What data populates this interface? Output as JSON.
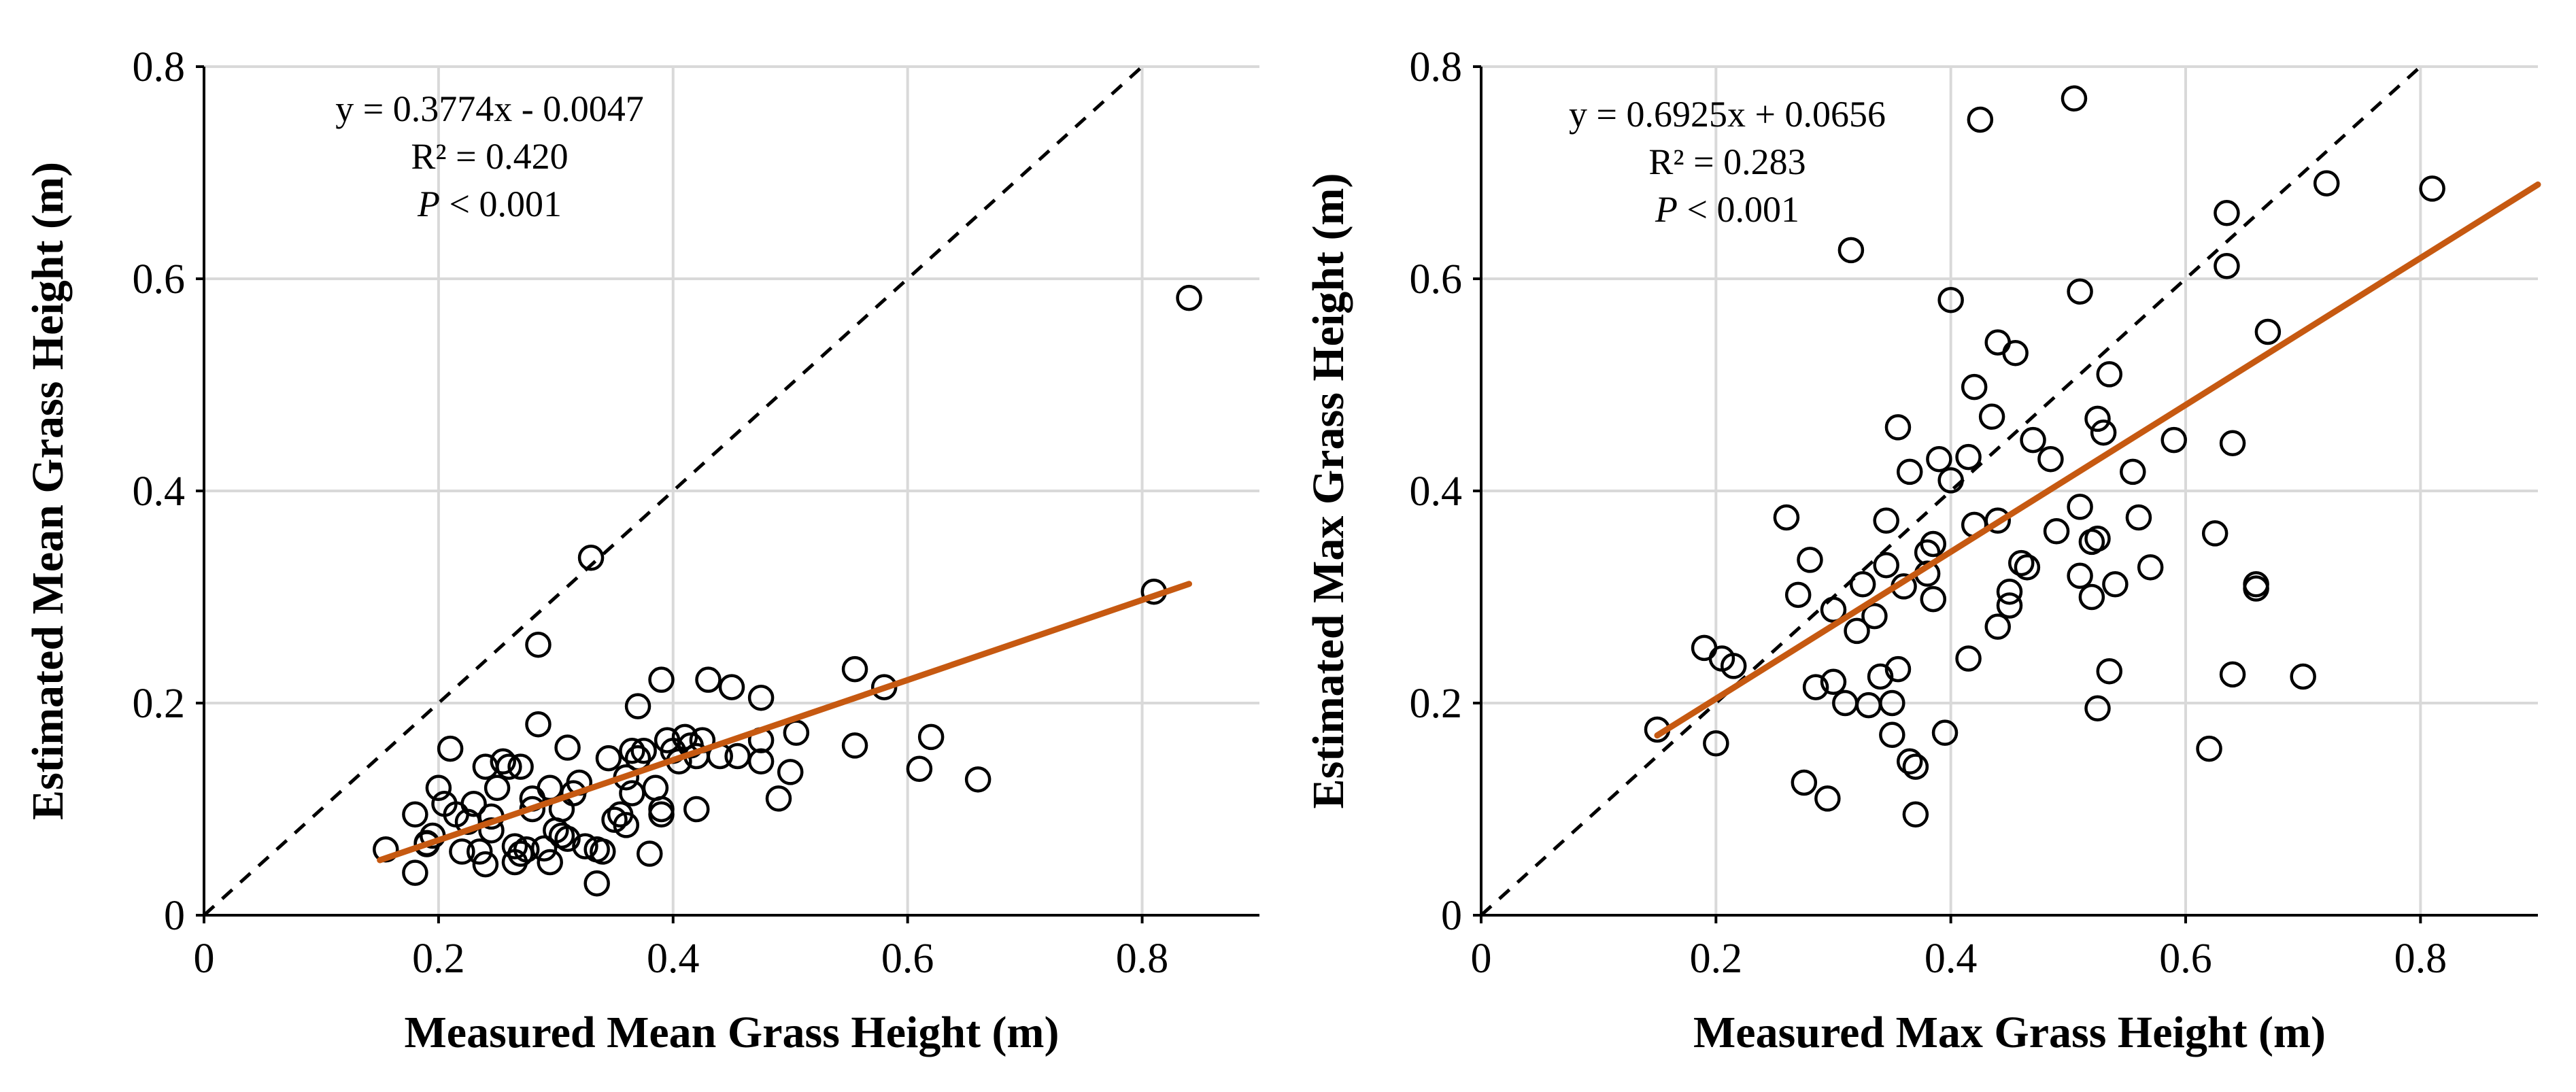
{
  "colors": {
    "fit_line": "#c65911",
    "points": "#000000",
    "reference_line": "#000000",
    "grid": "#d9d9d9"
  },
  "chart_data": [
    {
      "type": "scatter",
      "xlabel": "Measured Mean Grass Height (m)",
      "ylabel": "Estimated Mean Grass Height (m)",
      "xlim": [
        0,
        0.9
      ],
      "ylim": [
        0,
        0.8
      ],
      "xticks": [
        "0",
        "0.2",
        "0.4",
        "0.6",
        "0.8"
      ],
      "yticks": [
        "0",
        "0.2",
        "0.4",
        "0.6",
        "0.8"
      ],
      "annotation": {
        "equation": "y = 0.3774x - 0.0047",
        "r2": "R² = 0.420",
        "p_prefix": "P",
        "p_rest": " < 0.001"
      },
      "fit": {
        "slope": 0.3774,
        "intercept": -0.0047,
        "x_range": [
          0.15,
          0.84
        ]
      },
      "reference_line": "1:1",
      "points": [
        [
          0.155,
          0.062
        ],
        [
          0.18,
          0.095
        ],
        [
          0.18,
          0.04
        ],
        [
          0.19,
          0.067
        ],
        [
          0.19,
          0.068
        ],
        [
          0.195,
          0.075
        ],
        [
          0.2,
          0.12
        ],
        [
          0.205,
          0.105
        ],
        [
          0.21,
          0.157
        ],
        [
          0.215,
          0.095
        ],
        [
          0.22,
          0.06
        ],
        [
          0.225,
          0.088
        ],
        [
          0.23,
          0.105
        ],
        [
          0.235,
          0.06
        ],
        [
          0.24,
          0.048
        ],
        [
          0.24,
          0.14
        ],
        [
          0.245,
          0.08
        ],
        [
          0.245,
          0.093
        ],
        [
          0.25,
          0.12
        ],
        [
          0.255,
          0.145
        ],
        [
          0.26,
          0.14
        ],
        [
          0.265,
          0.05
        ],
        [
          0.265,
          0.065
        ],
        [
          0.27,
          0.14
        ],
        [
          0.27,
          0.058
        ],
        [
          0.275,
          0.062
        ],
        [
          0.28,
          0.1
        ],
        [
          0.28,
          0.11
        ],
        [
          0.285,
          0.18
        ],
        [
          0.285,
          0.255
        ],
        [
          0.29,
          0.063
        ],
        [
          0.295,
          0.05
        ],
        [
          0.295,
          0.12
        ],
        [
          0.3,
          0.08
        ],
        [
          0.305,
          0.075
        ],
        [
          0.305,
          0.1
        ],
        [
          0.31,
          0.158
        ],
        [
          0.31,
          0.072
        ],
        [
          0.315,
          0.115
        ],
        [
          0.32,
          0.125
        ],
        [
          0.325,
          0.065
        ],
        [
          0.33,
          0.337
        ],
        [
          0.335,
          0.062
        ],
        [
          0.335,
          0.03
        ],
        [
          0.34,
          0.06
        ],
        [
          0.345,
          0.148
        ],
        [
          0.35,
          0.09
        ],
        [
          0.355,
          0.095
        ],
        [
          0.36,
          0.13
        ],
        [
          0.36,
          0.085
        ],
        [
          0.365,
          0.155
        ],
        [
          0.365,
          0.115
        ],
        [
          0.37,
          0.148
        ],
        [
          0.37,
          0.197
        ],
        [
          0.375,
          0.155
        ],
        [
          0.38,
          0.058
        ],
        [
          0.385,
          0.12
        ],
        [
          0.39,
          0.095
        ],
        [
          0.39,
          0.222
        ],
        [
          0.39,
          0.1
        ],
        [
          0.395,
          0.165
        ],
        [
          0.4,
          0.155
        ],
        [
          0.405,
          0.145
        ],
        [
          0.41,
          0.168
        ],
        [
          0.415,
          0.16
        ],
        [
          0.42,
          0.1
        ],
        [
          0.42,
          0.15
        ],
        [
          0.425,
          0.165
        ],
        [
          0.43,
          0.222
        ],
        [
          0.44,
          0.15
        ],
        [
          0.45,
          0.215
        ],
        [
          0.455,
          0.15
        ],
        [
          0.475,
          0.205
        ],
        [
          0.475,
          0.165
        ],
        [
          0.475,
          0.145
        ],
        [
          0.49,
          0.11
        ],
        [
          0.5,
          0.135
        ],
        [
          0.505,
          0.172
        ],
        [
          0.555,
          0.232
        ],
        [
          0.555,
          0.16
        ],
        [
          0.58,
          0.215
        ],
        [
          0.61,
          0.138
        ],
        [
          0.62,
          0.168
        ],
        [
          0.66,
          0.128
        ],
        [
          0.81,
          0.305
        ],
        [
          0.84,
          0.582
        ]
      ]
    },
    {
      "type": "scatter",
      "xlabel": "Measured Max Grass Height (m)",
      "ylabel": "Estimated Max Grass Height (m)",
      "xlim": [
        0,
        0.9
      ],
      "ylim": [
        0,
        0.8
      ],
      "xticks": [
        "0",
        "0.2",
        "0.4",
        "0.6",
        "0.8"
      ],
      "yticks": [
        "0",
        "0.2",
        "0.4",
        "0.6",
        "0.8"
      ],
      "annotation": {
        "equation": "y = 0.6925x + 0.0656",
        "r2": "R² = 0.283",
        "p_prefix": "P",
        "p_rest": " < 0.001"
      },
      "fit": {
        "slope": 0.6925,
        "intercept": 0.0656,
        "x_range": [
          0.15,
          0.9
        ]
      },
      "reference_line": "1:1",
      "points": [
        [
          0.15,
          0.175
        ],
        [
          0.19,
          0.252
        ],
        [
          0.2,
          0.162
        ],
        [
          0.205,
          0.242
        ],
        [
          0.215,
          0.235
        ],
        [
          0.26,
          0.375
        ],
        [
          0.27,
          0.302
        ],
        [
          0.275,
          0.125
        ],
        [
          0.28,
          0.335
        ],
        [
          0.285,
          0.215
        ],
        [
          0.295,
          0.11
        ],
        [
          0.3,
          0.288
        ],
        [
          0.3,
          0.22
        ],
        [
          0.31,
          0.2
        ],
        [
          0.315,
          0.627
        ],
        [
          0.32,
          0.268
        ],
        [
          0.325,
          0.312
        ],
        [
          0.33,
          0.198
        ],
        [
          0.335,
          0.282
        ],
        [
          0.34,
          0.225
        ],
        [
          0.345,
          0.33
        ],
        [
          0.345,
          0.372
        ],
        [
          0.35,
          0.2
        ],
        [
          0.35,
          0.17
        ],
        [
          0.355,
          0.232
        ],
        [
          0.355,
          0.46
        ],
        [
          0.36,
          0.31
        ],
        [
          0.365,
          0.418
        ],
        [
          0.365,
          0.145
        ],
        [
          0.37,
          0.14
        ],
        [
          0.37,
          0.095
        ],
        [
          0.38,
          0.342
        ],
        [
          0.38,
          0.322
        ],
        [
          0.385,
          0.298
        ],
        [
          0.385,
          0.35
        ],
        [
          0.39,
          0.43
        ],
        [
          0.395,
          0.172
        ],
        [
          0.4,
          0.41
        ],
        [
          0.4,
          0.58
        ],
        [
          0.415,
          0.242
        ],
        [
          0.415,
          0.432
        ],
        [
          0.42,
          0.498
        ],
        [
          0.42,
          0.368
        ],
        [
          0.425,
          0.75
        ],
        [
          0.435,
          0.47
        ],
        [
          0.44,
          0.54
        ],
        [
          0.44,
          0.272
        ],
        [
          0.44,
          0.372
        ],
        [
          0.45,
          0.292
        ],
        [
          0.45,
          0.305
        ],
        [
          0.455,
          0.53
        ],
        [
          0.46,
          0.332
        ],
        [
          0.465,
          0.328
        ],
        [
          0.47,
          0.448
        ],
        [
          0.485,
          0.43
        ],
        [
          0.49,
          0.362
        ],
        [
          0.505,
          0.77
        ],
        [
          0.51,
          0.588
        ],
        [
          0.51,
          0.385
        ],
        [
          0.51,
          0.32
        ],
        [
          0.52,
          0.352
        ],
        [
          0.52,
          0.3
        ],
        [
          0.525,
          0.468
        ],
        [
          0.525,
          0.355
        ],
        [
          0.525,
          0.195
        ],
        [
          0.53,
          0.455
        ],
        [
          0.535,
          0.51
        ],
        [
          0.535,
          0.23
        ],
        [
          0.54,
          0.312
        ],
        [
          0.555,
          0.418
        ],
        [
          0.56,
          0.375
        ],
        [
          0.57,
          0.328
        ],
        [
          0.59,
          0.448
        ],
        [
          0.62,
          0.157
        ],
        [
          0.625,
          0.36
        ],
        [
          0.635,
          0.612
        ],
        [
          0.635,
          0.662
        ],
        [
          0.64,
          0.445
        ],
        [
          0.64,
          0.227
        ],
        [
          0.66,
          0.312
        ],
        [
          0.66,
          0.308
        ],
        [
          0.67,
          0.55
        ],
        [
          0.7,
          0.225
        ],
        [
          0.72,
          0.69
        ],
        [
          0.81,
          0.685
        ]
      ]
    }
  ]
}
